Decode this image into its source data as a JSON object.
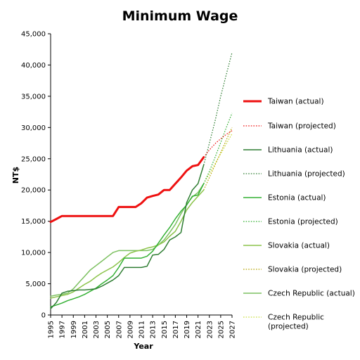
{
  "chart_data": {
    "type": "line",
    "title": "Minimum Wage",
    "xlabel": "Year",
    "ylabel": "NT$",
    "xlim": [
      1995,
      2027
    ],
    "ylim": [
      0,
      45000
    ],
    "x_ticks": [
      1995,
      1997,
      1999,
      2001,
      2003,
      2005,
      2007,
      2009,
      2011,
      2013,
      2015,
      2017,
      2019,
      2021,
      2023,
      2025,
      2027
    ],
    "y_ticks": [
      0,
      5000,
      10000,
      15000,
      20000,
      25000,
      30000,
      35000,
      40000,
      45000
    ],
    "y_tick_labels": [
      "0",
      "5,000",
      "10,000",
      "15,000",
      "20,000",
      "25,000",
      "30,000",
      "35,000",
      "40,000",
      "45,000"
    ],
    "grid": false,
    "legend_position": "right",
    "series": [
      {
        "name": "Taiwan (actual)",
        "color": "#ee1111",
        "style": "solid",
        "width": 3,
        "points": [
          [
            1995,
            14880
          ],
          [
            1996,
            15360
          ],
          [
            1997,
            15840
          ],
          [
            1998,
            15840
          ],
          [
            1999,
            15840
          ],
          [
            2000,
            15840
          ],
          [
            2001,
            15840
          ],
          [
            2002,
            15840
          ],
          [
            2003,
            15840
          ],
          [
            2004,
            15840
          ],
          [
            2005,
            15840
          ],
          [
            2006,
            15840
          ],
          [
            2007,
            17280
          ],
          [
            2008,
            17280
          ],
          [
            2009,
            17280
          ],
          [
            2010,
            17280
          ],
          [
            2011,
            17880
          ],
          [
            2012,
            18780
          ],
          [
            2013,
            19047
          ],
          [
            2014,
            19273
          ],
          [
            2015,
            20008
          ],
          [
            2016,
            20008
          ],
          [
            2017,
            21009
          ],
          [
            2018,
            22000
          ],
          [
            2019,
            23100
          ],
          [
            2020,
            23800
          ],
          [
            2021,
            24000
          ],
          [
            2022,
            25250
          ]
        ]
      },
      {
        "name": "Taiwan (projected)",
        "color": "#ee1111",
        "style": "dotted",
        "width": 1.2,
        "points": [
          [
            2022,
            25250
          ],
          [
            2023,
            26400
          ],
          [
            2024,
            27400
          ],
          [
            2025,
            28200
          ],
          [
            2026,
            28900
          ],
          [
            2027,
            29500
          ]
        ]
      },
      {
        "name": "Lithuania (actual)",
        "color": "#2e7d32",
        "style": "solid",
        "width": 1.5,
        "points": [
          [
            1995,
            1000
          ],
          [
            1996,
            2000
          ],
          [
            1997,
            3500
          ],
          [
            1998,
            3800
          ],
          [
            1999,
            3900
          ],
          [
            2000,
            4000
          ],
          [
            2001,
            4000
          ],
          [
            2002,
            4100
          ],
          [
            2003,
            4200
          ],
          [
            2004,
            4600
          ],
          [
            2005,
            5100
          ],
          [
            2006,
            5600
          ],
          [
            2007,
            6300
          ],
          [
            2008,
            7600
          ],
          [
            2009,
            7600
          ],
          [
            2010,
            7600
          ],
          [
            2011,
            7600
          ],
          [
            2012,
            7800
          ],
          [
            2013,
            9600
          ],
          [
            2014,
            9700
          ],
          [
            2015,
            10500
          ],
          [
            2016,
            12000
          ],
          [
            2017,
            12500
          ],
          [
            2018,
            13200
          ],
          [
            2019,
            18000
          ],
          [
            2020,
            20000
          ],
          [
            2021,
            21000
          ],
          [
            2022,
            24000
          ]
        ]
      },
      {
        "name": "Lithuania (projected)",
        "color": "#2e7d32",
        "style": "dotted",
        "width": 1.2,
        "points": [
          [
            2022,
            24000
          ],
          [
            2023,
            27500
          ],
          [
            2024,
            31000
          ],
          [
            2025,
            35000
          ],
          [
            2026,
            38500
          ],
          [
            2027,
            42000
          ]
        ]
      },
      {
        "name": "Estonia (actual)",
        "color": "#33b033",
        "style": "solid",
        "width": 1.5,
        "points": [
          [
            1995,
            1300
          ],
          [
            1996,
            1600
          ],
          [
            1997,
            1900
          ],
          [
            1998,
            2300
          ],
          [
            1999,
            2600
          ],
          [
            2000,
            2900
          ],
          [
            2001,
            3300
          ],
          [
            2002,
            3800
          ],
          [
            2003,
            4300
          ],
          [
            2004,
            5000
          ],
          [
            2005,
            5600
          ],
          [
            2006,
            6300
          ],
          [
            2007,
            7600
          ],
          [
            2008,
            9100
          ],
          [
            2009,
            9100
          ],
          [
            2010,
            9100
          ],
          [
            2011,
            9100
          ],
          [
            2012,
            9400
          ],
          [
            2013,
            10200
          ],
          [
            2014,
            11500
          ],
          [
            2015,
            12800
          ],
          [
            2016,
            14000
          ],
          [
            2017,
            15400
          ],
          [
            2018,
            16600
          ],
          [
            2019,
            17600
          ],
          [
            2020,
            19000
          ],
          [
            2021,
            19200
          ],
          [
            2022,
            21000
          ]
        ]
      },
      {
        "name": "Estonia (projected)",
        "color": "#33b033",
        "style": "dotted",
        "width": 1.2,
        "points": [
          [
            2022,
            21000
          ],
          [
            2023,
            23000
          ],
          [
            2024,
            25200
          ],
          [
            2025,
            27600
          ],
          [
            2026,
            30000
          ],
          [
            2027,
            32300
          ]
        ]
      },
      {
        "name": "Slovakia (actual)",
        "color": "#8bc34a",
        "style": "solid",
        "width": 1.5,
        "points": [
          [
            1995,
            2700
          ],
          [
            1996,
            2900
          ],
          [
            1997,
            3100
          ],
          [
            1998,
            3300
          ],
          [
            1999,
            3700
          ],
          [
            2000,
            4300
          ],
          [
            2001,
            4900
          ],
          [
            2002,
            5400
          ],
          [
            2003,
            6100
          ],
          [
            2004,
            6700
          ],
          [
            2005,
            7200
          ],
          [
            2006,
            7700
          ],
          [
            2007,
            8400
          ],
          [
            2008,
            9200
          ],
          [
            2009,
            9900
          ],
          [
            2010,
            10200
          ],
          [
            2011,
            10400
          ],
          [
            2012,
            10700
          ],
          [
            2013,
            10900
          ],
          [
            2014,
            11200
          ],
          [
            2015,
            11700
          ],
          [
            2016,
            12600
          ],
          [
            2017,
            13400
          ],
          [
            2018,
            15000
          ],
          [
            2019,
            16800
          ],
          [
            2020,
            18000
          ],
          [
            2021,
            19000
          ],
          [
            2022,
            20000
          ]
        ]
      },
      {
        "name": "Slovakia (projected)",
        "color": "#b5a400",
        "style": "dotted",
        "width": 1.2,
        "points": [
          [
            2022,
            20000
          ],
          [
            2023,
            22000
          ],
          [
            2024,
            24000
          ],
          [
            2025,
            26000
          ],
          [
            2026,
            28000
          ],
          [
            2027,
            30000
          ]
        ]
      },
      {
        "name": "Czech Republic (actual)",
        "color": "#7cc060",
        "style": "solid",
        "width": 1.5,
        "points": [
          [
            1995,
            3000
          ],
          [
            1996,
            3200
          ],
          [
            1997,
            3300
          ],
          [
            1998,
            3500
          ],
          [
            1999,
            4200
          ],
          [
            2000,
            5200
          ],
          [
            2001,
            6200
          ],
          [
            2002,
            7200
          ],
          [
            2003,
            7900
          ],
          [
            2004,
            8600
          ],
          [
            2005,
            9300
          ],
          [
            2006,
            10000
          ],
          [
            2007,
            10300
          ],
          [
            2008,
            10300
          ],
          [
            2009,
            10300
          ],
          [
            2010,
            10300
          ],
          [
            2011,
            10300
          ],
          [
            2012,
            10300
          ],
          [
            2013,
            10500
          ],
          [
            2014,
            11200
          ],
          [
            2015,
            12000
          ],
          [
            2016,
            13200
          ],
          [
            2017,
            14500
          ],
          [
            2018,
            16200
          ],
          [
            2019,
            17700
          ],
          [
            2020,
            18900
          ],
          [
            2021,
            19600
          ],
          [
            2022,
            21000
          ]
        ]
      },
      {
        "name": "Czech Republic (projected)",
        "color": "#c8dd3c",
        "style": "dotted",
        "width": 1.2,
        "points": [
          [
            2022,
            21000
          ],
          [
            2023,
            22600
          ],
          [
            2024,
            24200
          ],
          [
            2025,
            25800
          ],
          [
            2026,
            27400
          ],
          [
            2027,
            29000
          ]
        ]
      }
    ],
    "legend_labels": [
      [
        "Taiwan (actual)"
      ],
      [
        "Taiwan (projected)"
      ],
      [
        "Lithuania (actual)"
      ],
      [
        "Lithuania (projected)"
      ],
      [
        "Estonia (actual)"
      ],
      [
        "Estonia (projected)"
      ],
      [
        "Slovakia (actual)"
      ],
      [
        "Slovakia (projected)"
      ],
      [
        "Czech Republic (actual)"
      ],
      [
        "Czech Republic",
        "(projected)"
      ]
    ]
  }
}
